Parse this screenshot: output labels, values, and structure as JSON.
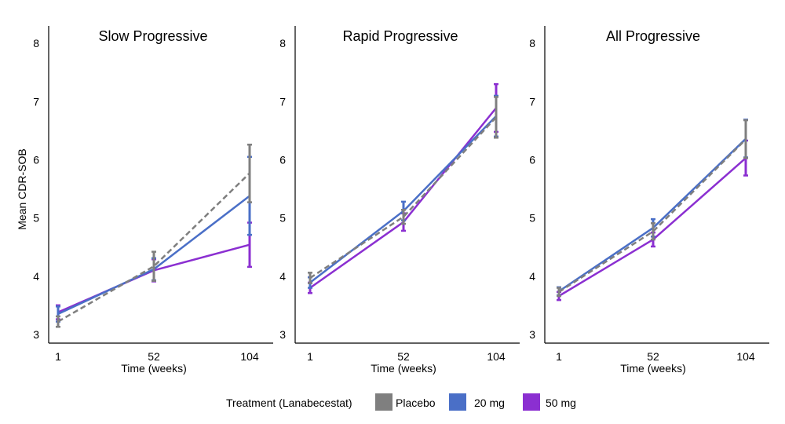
{
  "ylabel": "Mean CDR-SOB",
  "legend": {
    "title": "Treatment (Lanabecestat)",
    "placement": "bottom-center"
  },
  "series_style": [
    {
      "name": "Placebo",
      "color": "#7f7f7f",
      "dash": "dashed"
    },
    {
      "name": "20 mg",
      "color": "#4a6fc7",
      "dash": "solid"
    },
    {
      "name": "50 mg",
      "color": "#8b2fd1",
      "dash": "solid"
    }
  ],
  "chart_data": [
    {
      "type": "line",
      "title": "Slow Progressive",
      "xlabel": "Time (weeks)",
      "ylabel": "Mean CDR-SOB",
      "x": [
        1,
        52,
        104
      ],
      "x_ticks": [
        "1",
        "52",
        "104"
      ],
      "ylim": [
        2.85,
        8.3
      ],
      "y_ticks": [
        3,
        4,
        5,
        6,
        7,
        8
      ],
      "series": [
        {
          "name": "Placebo",
          "values": [
            3.22,
            4.17,
            5.77
          ],
          "err_low": [
            3.13,
            3.92,
            5.27
          ],
          "err_high": [
            3.31,
            4.42,
            6.26
          ]
        },
        {
          "name": "20 mg",
          "values": [
            3.35,
            4.12,
            5.38
          ],
          "err_low": [
            3.22,
            3.93,
            4.71
          ],
          "err_high": [
            3.48,
            4.31,
            6.05
          ]
        },
        {
          "name": "50 mg",
          "values": [
            3.38,
            4.1,
            4.54
          ],
          "err_low": [
            3.26,
            3.91,
            4.16
          ],
          "err_high": [
            3.5,
            4.29,
            4.92
          ]
        }
      ]
    },
    {
      "type": "line",
      "title": "Rapid Progressive",
      "xlabel": "Time (weeks)",
      "ylabel": "",
      "x": [
        1,
        52,
        104
      ],
      "x_ticks": [
        "1",
        "52",
        "104"
      ],
      "ylim": [
        2.85,
        8.3
      ],
      "y_ticks": [
        3,
        4,
        5,
        6,
        7,
        8
      ],
      "series": [
        {
          "name": "Placebo",
          "values": [
            3.97,
            5.02,
            6.73
          ],
          "err_low": [
            3.88,
            4.9,
            6.38
          ],
          "err_high": [
            4.06,
            5.14,
            7.08
          ]
        },
        {
          "name": "20 mg",
          "values": [
            3.89,
            5.12,
            6.75
          ],
          "err_low": [
            3.8,
            4.96,
            6.4
          ],
          "err_high": [
            3.98,
            5.28,
            7.1
          ]
        },
        {
          "name": "50 mg",
          "values": [
            3.8,
            4.93,
            6.89
          ],
          "err_low": [
            3.71,
            4.78,
            6.48
          ],
          "err_high": [
            3.89,
            5.08,
            7.3
          ]
        }
      ]
    },
    {
      "type": "line",
      "title": "All Progressive",
      "xlabel": "Time (weeks)",
      "ylabel": "",
      "x": [
        1,
        52,
        104
      ],
      "x_ticks": [
        "1",
        "52",
        "104"
      ],
      "ylim": [
        2.85,
        8.3
      ],
      "y_ticks": [
        3,
        4,
        5,
        6,
        7,
        8
      ],
      "series": [
        {
          "name": "Placebo",
          "values": [
            3.73,
            4.77,
            6.35
          ],
          "err_low": [
            3.66,
            4.63,
            6.03
          ],
          "err_high": [
            3.8,
            4.91,
            6.68
          ]
        },
        {
          "name": "20 mg",
          "values": [
            3.74,
            4.83,
            6.36
          ],
          "err_low": [
            3.67,
            4.68,
            6.04
          ],
          "err_high": [
            3.81,
            4.98,
            6.69
          ]
        },
        {
          "name": "50 mg",
          "values": [
            3.66,
            4.63,
            6.03
          ],
          "err_low": [
            3.59,
            4.51,
            5.73
          ],
          "err_high": [
            3.73,
            4.75,
            6.33
          ]
        }
      ]
    }
  ]
}
